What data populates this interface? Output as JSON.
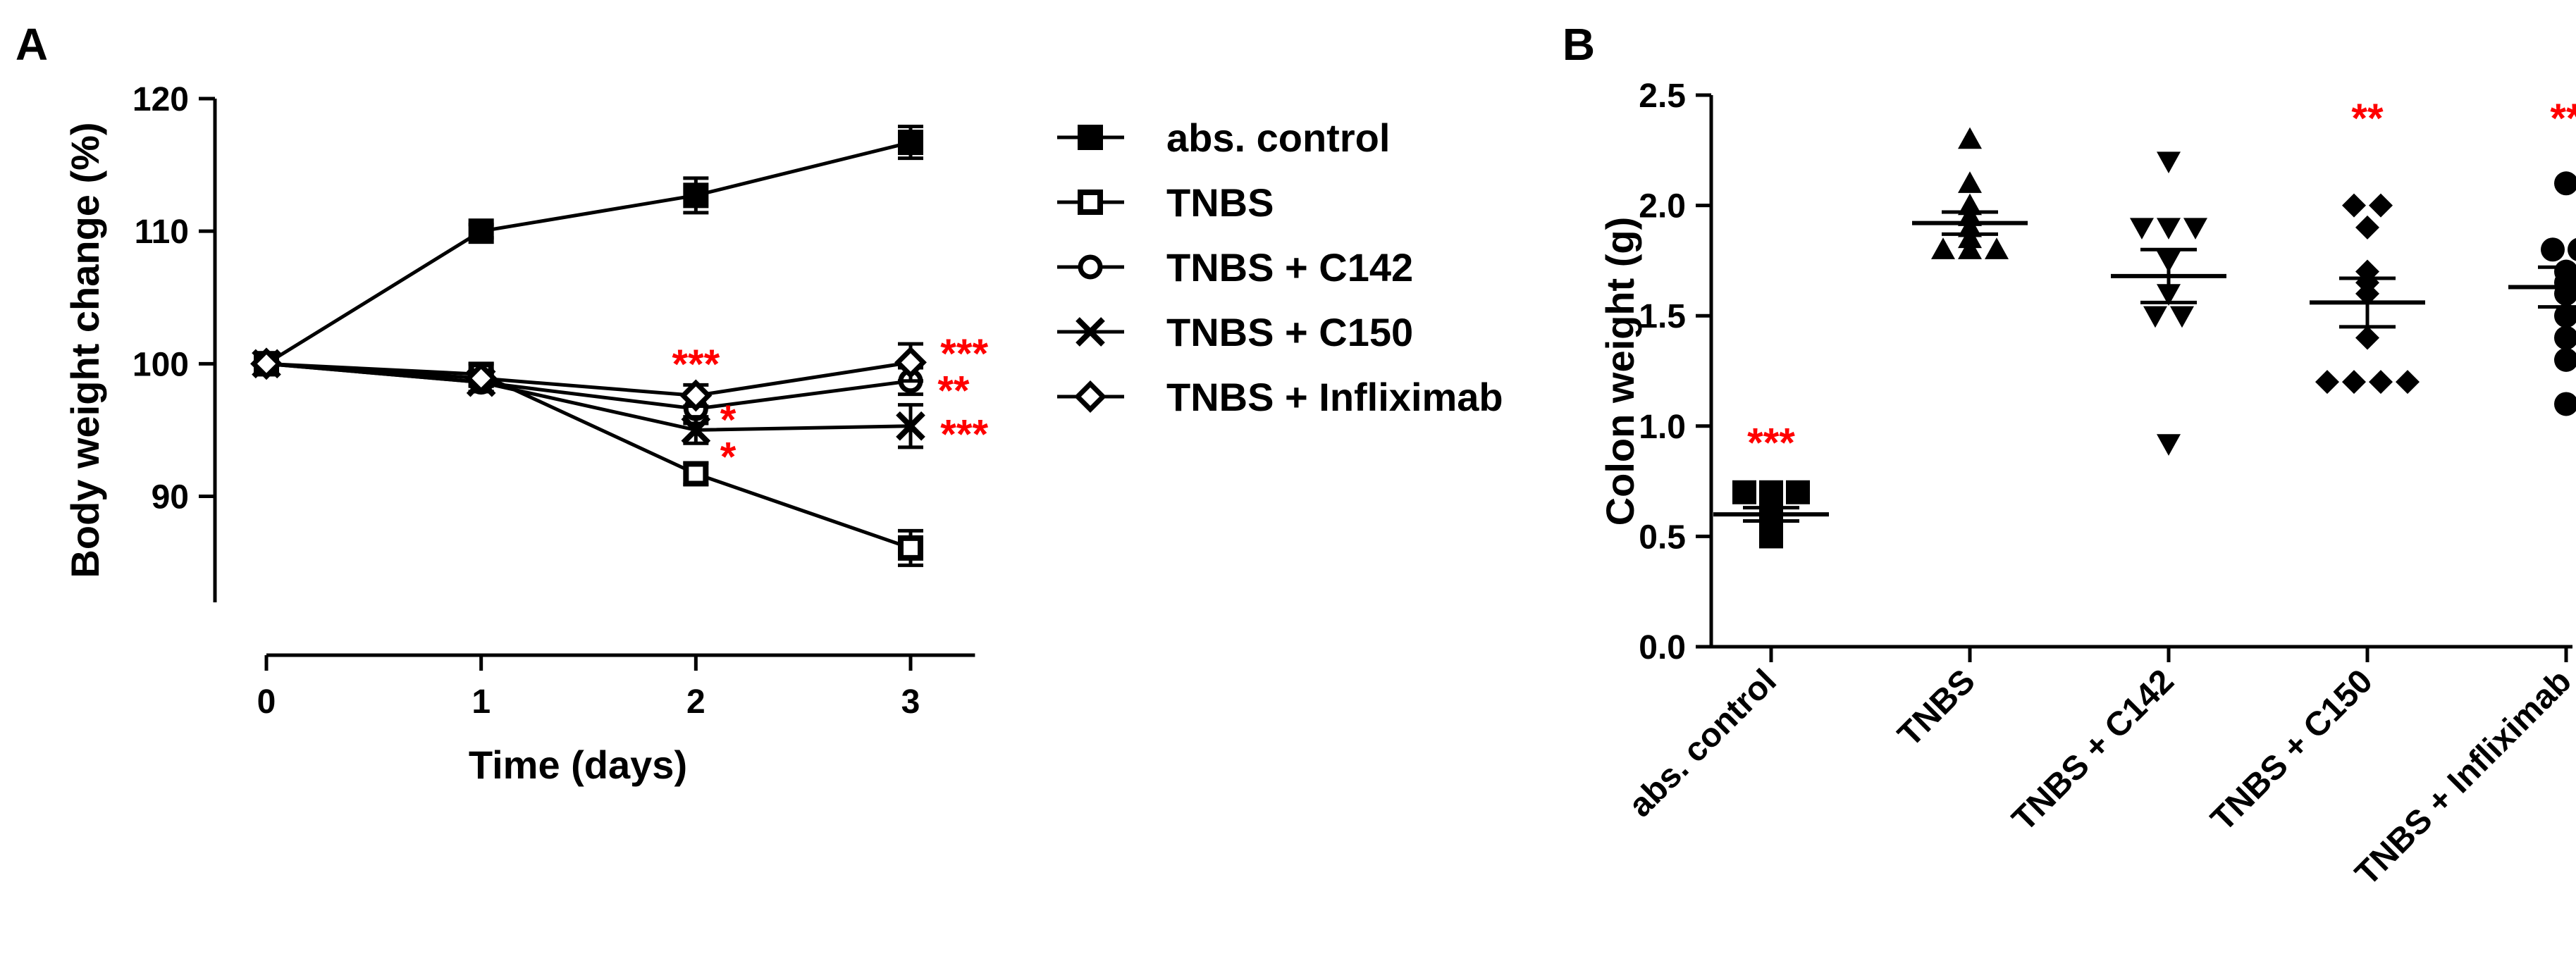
{
  "chart_data": [
    {
      "panel": "A",
      "type": "line",
      "xlabel": "Time (days)",
      "ylabel": "Body weight change (%)",
      "x": [
        0,
        1,
        2,
        3
      ],
      "x_ticks": [
        0,
        1,
        2,
        3
      ],
      "xlim": [
        0,
        3.3
      ],
      "ylim": [
        82,
        120
      ],
      "y_ticks": [
        90,
        100,
        110,
        120
      ],
      "grid": false,
      "legend_position": "right",
      "series": [
        {
          "name": "abs. control",
          "marker": "filled-square",
          "values": [
            100,
            110,
            112.7,
            116.7
          ],
          "errors": [
            0,
            0.5,
            1.3,
            1.2
          ]
        },
        {
          "name": "TNBS",
          "marker": "open-square",
          "values": [
            100,
            99.2,
            91.7,
            86.1
          ],
          "errors": [
            0,
            0.8,
            0.8,
            1.3
          ]
        },
        {
          "name": "TNBS + C142",
          "marker": "open-circle",
          "values": [
            100,
            98.6,
            96.6,
            98.7
          ],
          "errors": [
            0,
            0.7,
            1.1,
            1.0
          ]
        },
        {
          "name": "TNBS + C150",
          "marker": "x-cross",
          "values": [
            100,
            98.6,
            95.0,
            95.3
          ],
          "errors": [
            0,
            0.7,
            1.0,
            1.6
          ]
        },
        {
          "name": "TNBS + Infliximab",
          "marker": "open-diamond",
          "values": [
            100,
            98.9,
            97.6,
            100.1
          ],
          "errors": [
            0,
            0.6,
            0.8,
            1.4
          ]
        }
      ],
      "annotations": [
        {
          "text": "***",
          "x": 2,
          "y": 100.5
        },
        {
          "text": "*",
          "x": 2.15,
          "y": 96.3
        },
        {
          "text": "*",
          "x": 2.15,
          "y": 93.5
        },
        {
          "text": "***",
          "x": 3.25,
          "y": 101.3
        },
        {
          "text": "**",
          "x": 3.2,
          "y": 98.5
        },
        {
          "text": "***",
          "x": 3.25,
          "y": 95.2
        }
      ]
    },
    {
      "panel": "B",
      "type": "scatter",
      "ylabel": "Colon weight (g)",
      "categories": [
        "abs. control",
        "TNBS",
        "TNBS + C142",
        "TNBS + C150",
        "TNBS + Infliximab"
      ],
      "ylim": [
        0,
        2.5
      ],
      "y_ticks": [
        "0.0",
        "0.5",
        "1.0",
        "1.5",
        "2.0",
        "2.5"
      ],
      "grid": false,
      "groups": [
        {
          "name": "abs. control",
          "marker": "square",
          "mean": 0.6,
          "sem": 0.03,
          "significance": "***",
          "points": [
            0.5,
            0.55,
            0.6,
            0.62,
            0.65,
            0.7,
            0.7,
            0.7
          ]
        },
        {
          "name": "TNBS",
          "marker": "triangle-up",
          "mean": 1.92,
          "sem": 0.05,
          "significance": "",
          "points": [
            1.8,
            1.8,
            1.8,
            1.85,
            1.9,
            1.95,
            2.0,
            2.1,
            2.3
          ]
        },
        {
          "name": "TNBS + C142",
          "marker": "triangle-down",
          "mean": 1.68,
          "sem": 0.12,
          "significance": "",
          "points": [
            0.92,
            1.5,
            1.5,
            1.6,
            1.75,
            1.9,
            1.9,
            1.9,
            2.2
          ]
        },
        {
          "name": "TNBS + C150",
          "marker": "diamond",
          "mean": 1.56,
          "sem": 0.11,
          "significance": "**",
          "points": [
            1.2,
            1.2,
            1.2,
            1.2,
            1.4,
            1.6,
            1.65,
            1.7,
            1.9,
            2.0,
            2.0
          ]
        },
        {
          "name": "TNBS + Infliximab",
          "marker": "circle",
          "mean": 1.63,
          "sem": 0.09,
          "significance": "**",
          "points": [
            1.1,
            1.3,
            1.4,
            1.5,
            1.6,
            1.65,
            1.7,
            1.8,
            1.8,
            2.1
          ]
        }
      ]
    }
  ]
}
